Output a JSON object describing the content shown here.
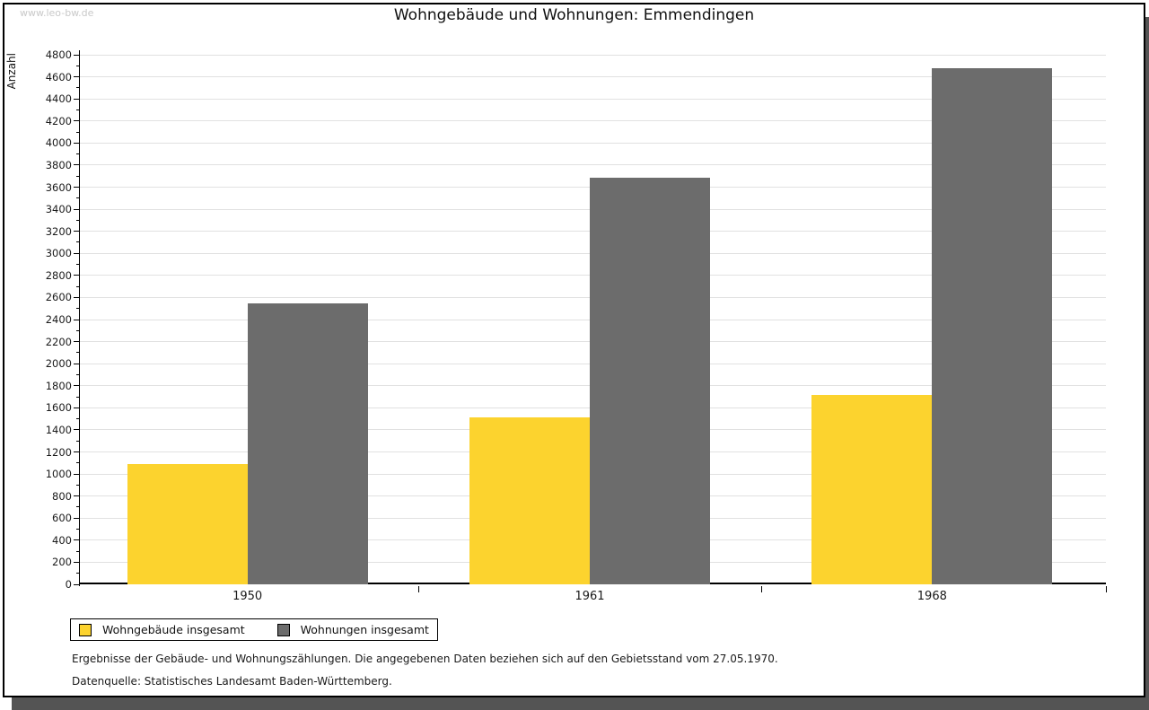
{
  "watermark": "www.leo-bw.de",
  "header": {
    "title": "Wohngebäude und Wohnungen: Emmendingen"
  },
  "chart_data": {
    "type": "bar",
    "title": "Wohngebäude und Wohnungen: Emmendingen",
    "xlabel": "",
    "ylabel": "Anzahl",
    "categories": [
      "1950",
      "1961",
      "1968"
    ],
    "series": [
      {
        "name": "Wohngebäude insgesamt",
        "color": "#fcd32e",
        "values": [
          1090,
          1510,
          1720
        ]
      },
      {
        "name": "Wohnungen insgesamt",
        "color": "#6c6c6c",
        "values": [
          2550,
          3685,
          4680
        ]
      }
    ],
    "ylim": [
      0,
      4800
    ],
    "ytick_step": 200,
    "minor_tick_step": 100,
    "grid": true,
    "legend_position": "bottom-left",
    "gridline_color": "#e1e1e1"
  },
  "footer": {
    "line1": "Ergebnisse der Gebäude- und Wohnungszählungen. Die angegebenen Daten beziehen sich auf den Gebietsstand vom 27.05.1970.",
    "line2": "Datenquelle: Statistisches Landesamt Baden-Württemberg."
  }
}
